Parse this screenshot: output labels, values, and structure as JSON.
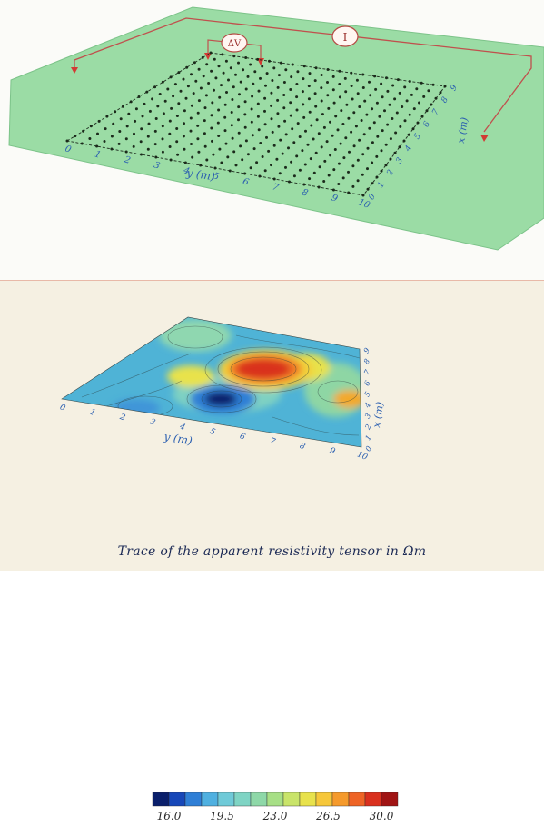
{
  "top_panel": {
    "current_label": "I",
    "voltage_label": "ΔV",
    "y_axis_label": "y (m)",
    "x_axis_label": "x (m)",
    "y_ticks": [
      "0",
      "1",
      "2",
      "3",
      "4",
      "5",
      "6",
      "7",
      "8",
      "9",
      "10"
    ],
    "x_ticks": [
      "0",
      "1",
      "2",
      "3",
      "4",
      "5",
      "6",
      "7",
      "8",
      "9"
    ]
  },
  "bottom_panel": {
    "y_axis_label": "y (m)",
    "x_axis_label": "x (m)",
    "y_ticks": [
      "0",
      "1",
      "2",
      "3",
      "4",
      "5",
      "6",
      "7",
      "8",
      "9",
      "10"
    ],
    "x_ticks": [
      "0",
      "1",
      "2",
      "3",
      "4",
      "5",
      "6",
      "7",
      "8",
      "9"
    ],
    "colorbar": {
      "colors": [
        "#0a1f6b",
        "#1747b8",
        "#2f7fd6",
        "#4fb0e0",
        "#6fcad8",
        "#7fd4c4",
        "#8ed8a8",
        "#a7df86",
        "#c9e46a",
        "#e8e24c",
        "#f6c73a",
        "#f59a2c",
        "#ee6426",
        "#d9301e",
        "#a01414"
      ],
      "tick_labels": [
        "16.0",
        "19.5",
        "23.0",
        "26.5",
        "30.0"
      ]
    },
    "caption": "Trace of the apparent resistivity tensor in Ωm"
  }
}
